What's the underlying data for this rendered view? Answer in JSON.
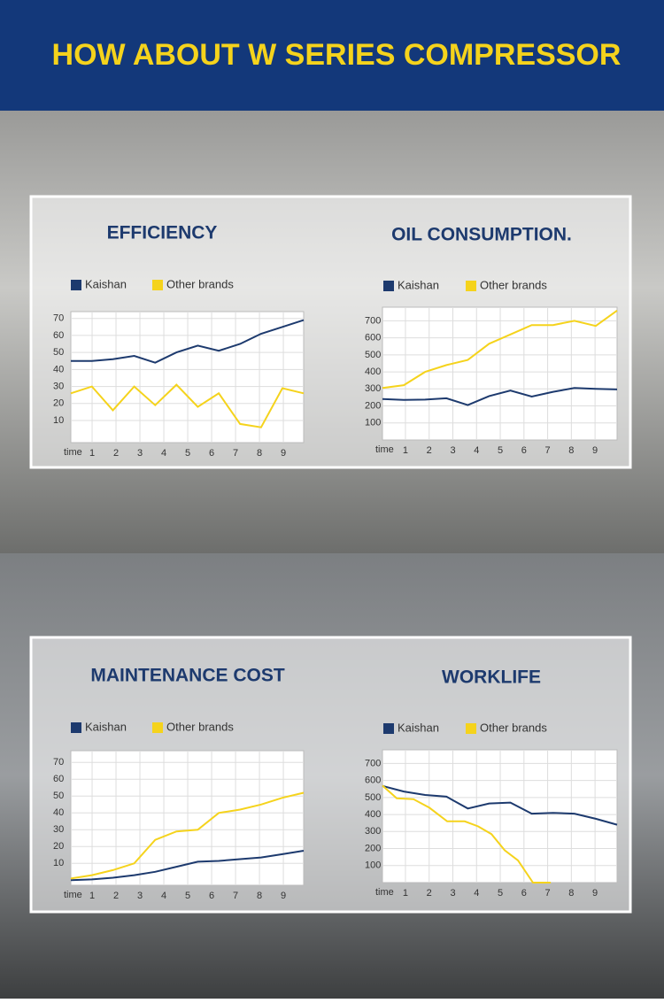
{
  "title": "HOW ABOUT W SERIES COMPRESSOR",
  "chart_data": [
    {
      "type": "line",
      "title": "EFFICIENCY",
      "x_label": "time",
      "x": [
        0.11,
        0.99,
        1.87,
        2.76,
        3.64,
        4.53,
        5.42,
        6.3,
        7.19,
        8.07,
        8.96,
        9.85
      ],
      "xlim": [
        0.11,
        9.85
      ],
      "xticks": [
        1,
        2,
        3,
        4,
        5,
        6,
        7,
        8,
        9
      ],
      "ylim": [
        -3,
        74
      ],
      "yticks": [
        10,
        20,
        30,
        40,
        50,
        60,
        70
      ],
      "grid": true,
      "series": [
        {
          "name": "Kaishan",
          "color": "#1d3a6e",
          "values": [
            45,
            45,
            46,
            48,
            44,
            50,
            54,
            51,
            55,
            61,
            65,
            69
          ]
        },
        {
          "name": "Other brands",
          "color": "#f5d31c",
          "values": [
            26,
            30,
            16,
            30,
            19,
            31,
            18,
            26,
            8,
            6,
            29,
            26
          ]
        }
      ]
    },
    {
      "type": "line",
      "title": "OIL CONSUMPTION.",
      "x_label": "time",
      "x": [
        0.03,
        0.93,
        1.83,
        2.73,
        3.63,
        4.53,
        5.43,
        6.33,
        7.23,
        8.13,
        9.03,
        9.93
      ],
      "xlim": [
        0.03,
        9.93
      ],
      "xticks": [
        1,
        2,
        3,
        4,
        5,
        6,
        7,
        8,
        9
      ],
      "ylim": [
        0,
        780
      ],
      "yticks": [
        100,
        200,
        300,
        400,
        500,
        600,
        700
      ],
      "grid": true,
      "series": [
        {
          "name": "Kaishan",
          "color": "#1d3a6e",
          "values": [
            240,
            235,
            237,
            245,
            205,
            258,
            290,
            255,
            283,
            305,
            300,
            297
          ]
        },
        {
          "name": "Other brands",
          "color": "#f5d31c",
          "values": [
            305,
            322,
            400,
            440,
            470,
            565,
            620,
            675,
            675,
            700,
            670,
            760
          ]
        }
      ]
    },
    {
      "type": "line",
      "title": "MAINTENANCE COST",
      "x_label": "time",
      "x": [
        0.11,
        0.99,
        1.87,
        2.76,
        3.64,
        4.53,
        5.42,
        6.3,
        7.19,
        8.07,
        8.96,
        9.85
      ],
      "xlim": [
        0.11,
        9.85
      ],
      "xticks": [
        1,
        2,
        3,
        4,
        5,
        6,
        7,
        8,
        9
      ],
      "ylim": [
        -3,
        77
      ],
      "yticks": [
        10,
        20,
        30,
        40,
        50,
        60,
        70
      ],
      "grid": true,
      "series": [
        {
          "name": "Kaishan",
          "color": "#1d3a6e",
          "values": [
            0,
            0.5,
            1.5,
            3,
            5,
            8,
            11,
            11.5,
            12.5,
            13.5,
            15.5,
            17.5
          ]
        },
        {
          "name": "Other brands",
          "color": "#f5d31c",
          "values": [
            1,
            3,
            6,
            10,
            24,
            29,
            30,
            40,
            42,
            45,
            49,
            52
          ]
        }
      ]
    },
    {
      "type": "line",
      "title": "WORKLIFE",
      "x_label": "time",
      "x": [
        0.03,
        0.93,
        1.83,
        2.73,
        3.63,
        4.53,
        5.43,
        6.33,
        7.23,
        8.13,
        9.03,
        9.93
      ],
      "xlim": [
        0.03,
        9.93
      ],
      "xticks": [
        1,
        2,
        3,
        4,
        5,
        6,
        7,
        8,
        9
      ],
      "ylim": [
        0,
        780
      ],
      "yticks": [
        100,
        200,
        300,
        400,
        500,
        600,
        700
      ],
      "grid": true,
      "series": [
        {
          "name": "Kaishan",
          "color": "#1d3a6e",
          "values": [
            568,
            535,
            515,
            505,
            435,
            465,
            470,
            405,
            410,
            405,
            375,
            340
          ]
        },
        {
          "name": "Other brands",
          "color": "#f5d31c",
          "x": [
            0.03,
            0.63,
            1.34,
            2.01,
            2.76,
            3.5,
            4.07,
            4.63,
            5.19,
            5.75,
            6.38,
            7.13
          ],
          "values": [
            570,
            495,
            490,
            440,
            360,
            360,
            330,
            285,
            190,
            130,
            0,
            0
          ]
        }
      ]
    }
  ]
}
